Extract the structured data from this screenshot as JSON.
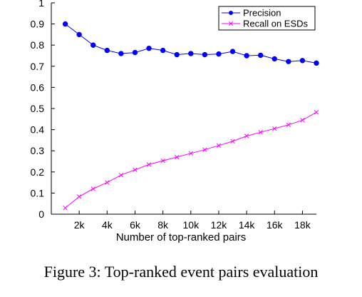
{
  "chart_data": {
    "type": "line",
    "title": "",
    "xlabel": "Number of top-ranked pairs",
    "ylabel": "",
    "xlim": [
      0,
      19000
    ],
    "ylim": [
      0,
      1
    ],
    "x_ticks": [
      2000,
      4000,
      6000,
      8000,
      10000,
      12000,
      14000,
      16000,
      18000
    ],
    "x_tick_labels": [
      "2k",
      "4k",
      "6k",
      "8k",
      "10k",
      "12k",
      "14k",
      "16k",
      "18k"
    ],
    "y_ticks": [
      0,
      0.1,
      0.2,
      0.3,
      0.4,
      0.5,
      0.6,
      0.7,
      0.8,
      0.9,
      1
    ],
    "y_tick_labels": [
      "0",
      "0.1",
      "0.2",
      "0.3",
      "0.4",
      "0.5",
      "0.6",
      "0.7",
      "0.8",
      "0.9",
      "1"
    ],
    "grid": false,
    "legend_position": "top-right",
    "x": [
      1000,
      2000,
      3000,
      4000,
      5000,
      6000,
      7000,
      8000,
      9000,
      10000,
      11000,
      12000,
      13000,
      14000,
      15000,
      16000,
      17000,
      18000,
      19000
    ],
    "series": [
      {
        "name": "Precision",
        "color": "#0000ff",
        "marker": "dot",
        "values": [
          0.9,
          0.85,
          0.8,
          0.775,
          0.76,
          0.765,
          0.785,
          0.775,
          0.755,
          0.76,
          0.755,
          0.758,
          0.77,
          0.75,
          0.752,
          0.735,
          0.722,
          0.727,
          0.715
        ]
      },
      {
        "name": "Recall on ESDs",
        "color": "#ff00ff",
        "marker": "x",
        "values": [
          0.03,
          0.083,
          0.12,
          0.15,
          0.185,
          0.21,
          0.235,
          0.253,
          0.27,
          0.288,
          0.305,
          0.325,
          0.345,
          0.37,
          0.388,
          0.405,
          0.423,
          0.445,
          0.482
        ]
      }
    ]
  },
  "caption": "Figure 3: Top-ranked event pairs evaluation"
}
